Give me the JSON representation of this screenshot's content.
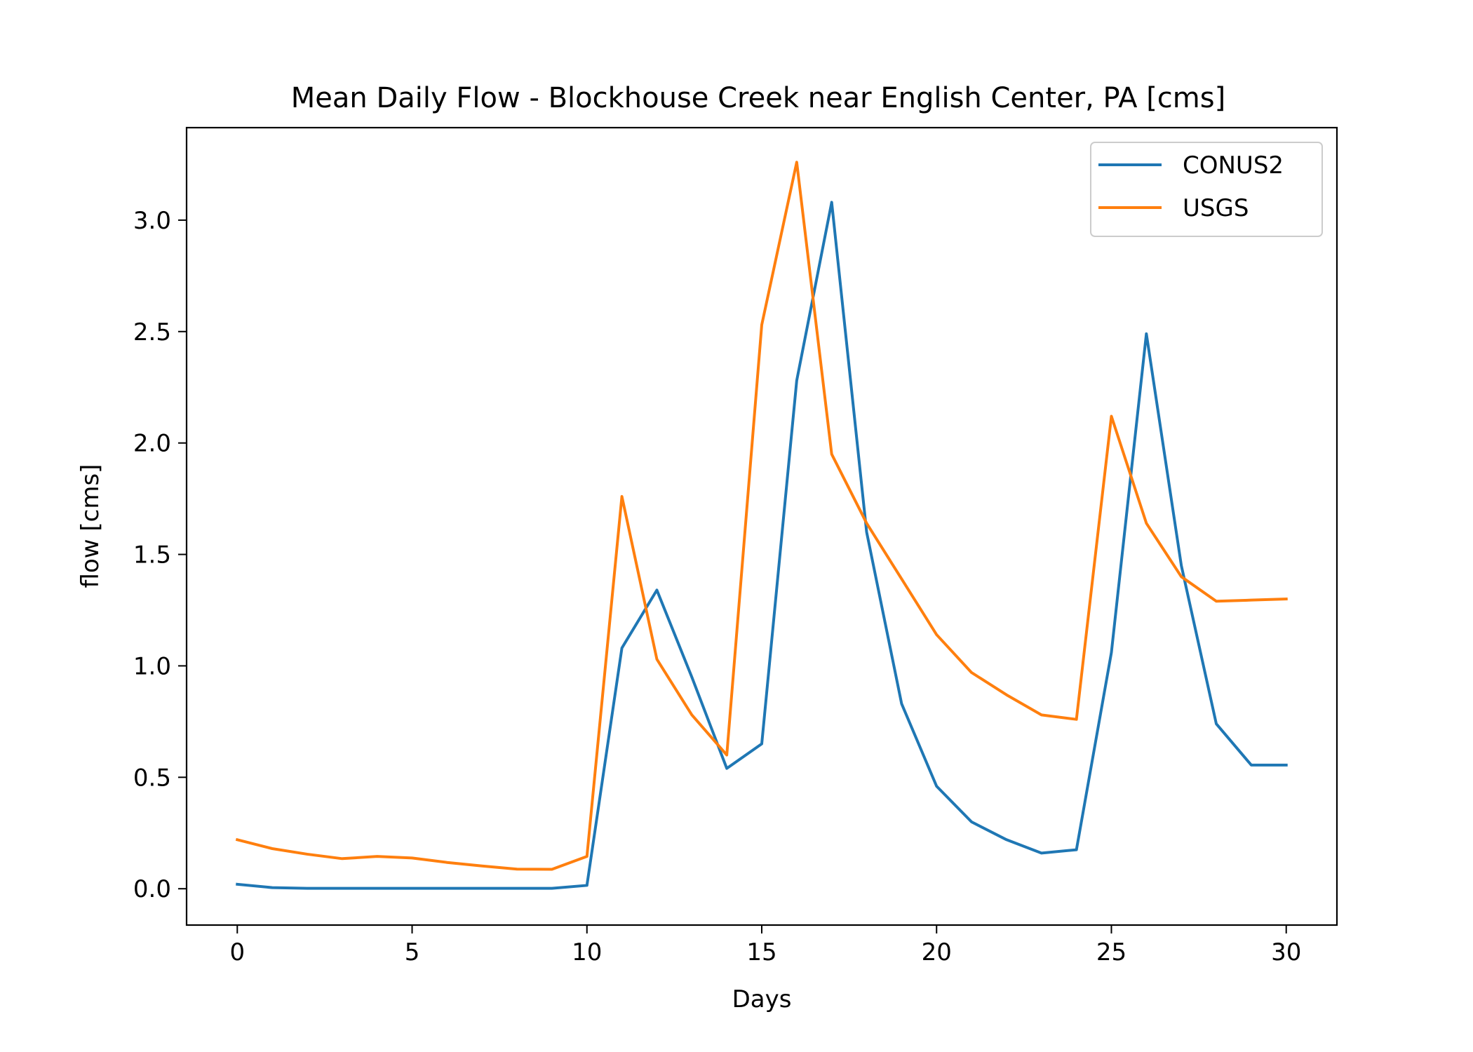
{
  "chart_data": {
    "type": "line",
    "title": "Mean Daily Flow - Blockhouse Creek near English Center, PA [cms]",
    "xlabel": "Days",
    "ylabel": "flow [cms]",
    "xlim": [
      -1.45,
      31.45
    ],
    "ylim": [
      -0.163,
      3.415
    ],
    "xticks": [
      0,
      5,
      10,
      15,
      20,
      25,
      30
    ],
    "xtick_labels": [
      "0",
      "5",
      "10",
      "15",
      "20",
      "25",
      "30"
    ],
    "yticks": [
      0.0,
      0.5,
      1.0,
      1.5,
      2.0,
      2.5,
      3.0
    ],
    "ytick_labels": [
      "0.0",
      "0.5",
      "1.0",
      "1.5",
      "2.0",
      "2.5",
      "3.0"
    ],
    "grid": false,
    "legend_position": "top-right",
    "x": [
      0,
      1,
      2,
      3,
      4,
      5,
      6,
      7,
      8,
      9,
      10,
      11,
      12,
      13,
      14,
      15,
      16,
      17,
      18,
      19,
      20,
      21,
      22,
      23,
      24,
      25,
      26,
      27,
      28,
      29,
      30
    ],
    "series": [
      {
        "name": "CONUS2",
        "color": "#1f77b4",
        "values": [
          0.02,
          0.005,
          0.002,
          0.002,
          0.002,
          0.002,
          0.002,
          0.002,
          0.002,
          0.002,
          0.015,
          1.08,
          1.34,
          0.95,
          0.54,
          0.65,
          2.28,
          3.08,
          1.6,
          0.83,
          0.46,
          0.3,
          0.22,
          0.16,
          0.175,
          1.06,
          2.49,
          1.45,
          0.74,
          0.555,
          0.555
        ]
      },
      {
        "name": "USGS",
        "color": "#ff7f0e",
        "values": [
          0.22,
          0.18,
          0.155,
          0.135,
          0.145,
          0.138,
          0.118,
          0.102,
          0.088,
          0.087,
          0.145,
          1.76,
          1.03,
          0.78,
          0.6,
          2.53,
          3.26,
          1.95,
          1.64,
          1.39,
          1.14,
          0.97,
          0.87,
          0.78,
          0.76,
          2.12,
          1.64,
          1.4,
          1.29,
          1.295,
          1.3
        ]
      }
    ]
  }
}
